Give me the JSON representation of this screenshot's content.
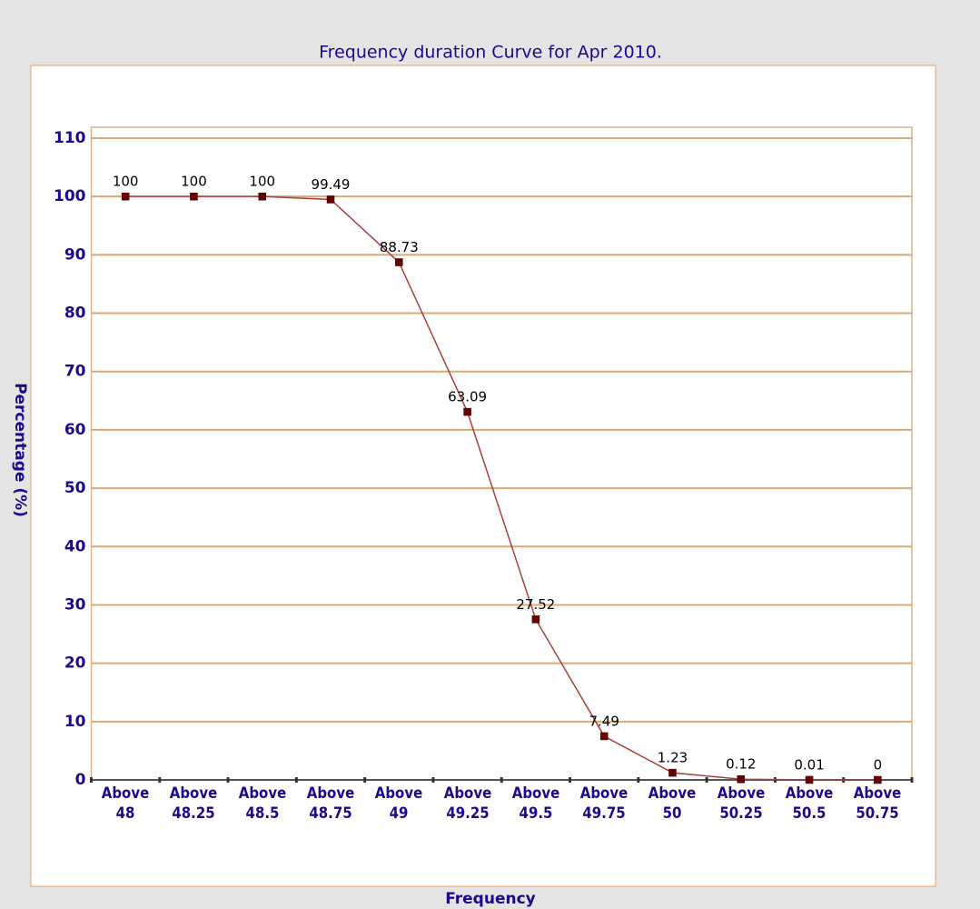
{
  "chart_data": {
    "type": "line",
    "title": "Frequency duration Curve for Apr 2010.",
    "x_label": "Frequency",
    "y_label": "Percentage (%)",
    "categories": [
      "Above 48",
      "Above 48.25",
      "Above 48.5",
      "Above 48.75",
      "Above 49",
      "Above 49.25",
      "Above 49.5",
      "Above 49.75",
      "Above 50",
      "Above 50.25",
      "Above 50.5",
      "Above 50.75"
    ],
    "values": [
      100,
      100,
      100,
      99.49,
      88.73,
      63.09,
      27.52,
      7.49,
      1.23,
      0.12,
      0.01,
      0
    ],
    "color": "#a8403c",
    "marker_color": "#6b0000",
    "ylim": [
      0,
      110
    ],
    "yticks": [
      0,
      10,
      20,
      30,
      40,
      50,
      60,
      70,
      80,
      90,
      100,
      110
    ],
    "grid": true
  }
}
